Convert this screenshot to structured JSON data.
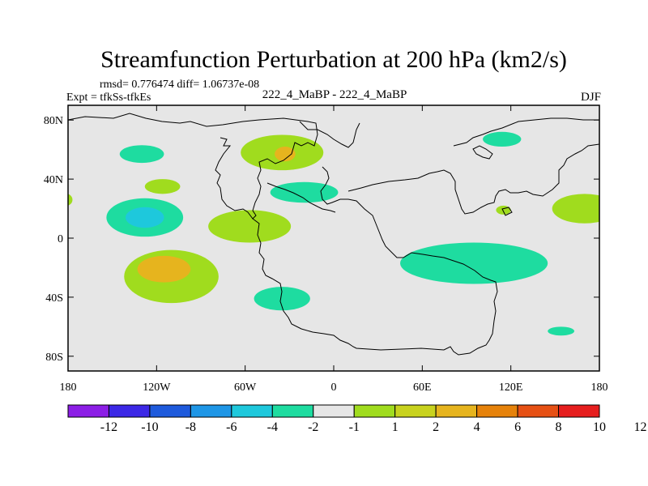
{
  "chart_data": {
    "type": "heatmap",
    "title": "Streamfunction Perturbation at 200 hPa (km2/s)",
    "stats_text": "rmsd= 0.776474 diff= 1.06737e-08",
    "left_label": "Expt = tfkSs-tfkEs",
    "center_label": "222_4_MaBP - 222_4_MaBP",
    "right_label": "DJF",
    "x_range": [
      -180,
      180
    ],
    "y_range": [
      -90,
      90
    ],
    "x_ticks": [
      {
        "value": -180,
        "label": "180"
      },
      {
        "value": -120,
        "label": "120W"
      },
      {
        "value": -60,
        "label": "60W"
      },
      {
        "value": 0,
        "label": "0"
      },
      {
        "value": 60,
        "label": "60E"
      },
      {
        "value": 120,
        "label": "120E"
      },
      {
        "value": 180,
        "label": "180"
      }
    ],
    "y_ticks": [
      {
        "value": 80,
        "label": "80N"
      },
      {
        "value": 40,
        "label": "40N"
      },
      {
        "value": 0,
        "label": "0"
      },
      {
        "value": -40,
        "label": "40S"
      },
      {
        "value": -80,
        "label": "80S"
      }
    ],
    "colorbar": {
      "colors": [
        "#8c1ee6",
        "#3c28e6",
        "#1e5adc",
        "#1e96e6",
        "#1ec8dc",
        "#1edca0",
        "#e6e6e6",
        "#a0dc1e",
        "#c8d21e",
        "#e6b41e",
        "#e6820a",
        "#e65014",
        "#e61e1e"
      ],
      "labels": [
        "-12",
        "-10",
        "-8",
        "-6",
        "-4",
        "-2",
        "-1",
        "1",
        "2",
        "4",
        "6",
        "8",
        "10",
        "12"
      ]
    },
    "blobs": [
      {
        "lon": -35,
        "lat": 58,
        "rlon": 28,
        "rlat": 12,
        "level": 7
      },
      {
        "lon": -33,
        "lat": 57,
        "rlon": 7,
        "rlat": 5,
        "level": 9
      },
      {
        "lon": -130,
        "lat": 57,
        "rlon": 15,
        "rlat": 6,
        "level": 5
      },
      {
        "lon": -116,
        "lat": 35,
        "rlon": 12,
        "rlat": 5,
        "level": 7
      },
      {
        "lon": -181,
        "lat": 26,
        "rlon": 4,
        "rlat": 4,
        "level": 7
      },
      {
        "lon": -128,
        "lat": 14,
        "rlon": 26,
        "rlat": 13,
        "level": 5
      },
      {
        "lon": -128,
        "lat": 14,
        "rlon": 13,
        "rlat": 7,
        "level": 4
      },
      {
        "lon": -110,
        "lat": -26,
        "rlon": 32,
        "rlat": 18,
        "level": 7
      },
      {
        "lon": -115,
        "lat": -21,
        "rlon": 18,
        "rlat": 9,
        "level": 9
      },
      {
        "lon": -57,
        "lat": 8,
        "rlon": 28,
        "rlat": 11,
        "level": 7
      },
      {
        "lon": -20,
        "lat": 31,
        "rlon": 23,
        "rlat": 7,
        "level": 5
      },
      {
        "lon": -35,
        "lat": -41,
        "rlon": 19,
        "rlat": 8,
        "level": 5
      },
      {
        "lon": 95,
        "lat": -17,
        "rlon": 50,
        "rlat": 14,
        "level": 5
      },
      {
        "lon": 114,
        "lat": 67,
        "rlon": 13,
        "rlat": 5,
        "level": 5
      },
      {
        "lon": 115,
        "lat": 19,
        "rlon": 5,
        "rlat": 3,
        "level": 7
      },
      {
        "lon": 170,
        "lat": 20,
        "rlon": 22,
        "rlat": 10,
        "level": 7
      },
      {
        "lon": 154,
        "lat": -63,
        "rlon": 9,
        "rlat": 3,
        "level": 5
      }
    ]
  }
}
